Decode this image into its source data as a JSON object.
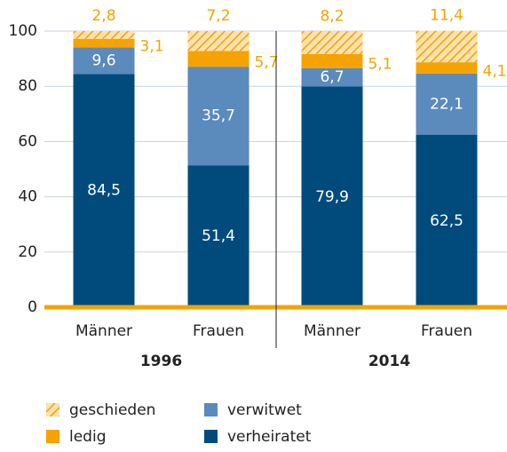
{
  "chart_data": {
    "type": "stacked_bar",
    "categories": [
      "Männer",
      "Frauen",
      "Männer",
      "Frauen"
    ],
    "group_labels": [
      "1996",
      "2014"
    ],
    "series": [
      {
        "name": "verheiratet",
        "color": "#004b7c",
        "values": [
          84.5,
          51.4,
          79.9,
          62.5
        ],
        "value_labels": [
          "84,5",
          "51,4",
          "79,9",
          "62,5"
        ],
        "label_position": "inside"
      },
      {
        "name": "verwitwet",
        "color": "#5b8abd",
        "values": [
          9.6,
          35.7,
          6.7,
          22.1
        ],
        "value_labels": [
          "9,6",
          "35,7",
          "6,7",
          "22,1"
        ],
        "label_position": "inside"
      },
      {
        "name": "ledig",
        "color": "#f5a300",
        "values": [
          3.1,
          5.7,
          5.1,
          4.1
        ],
        "value_labels": [
          "3,1",
          "5,7",
          "5,1",
          "4,1"
        ],
        "label_position": "right"
      },
      {
        "name": "geschieden",
        "color": "#f5a300",
        "hatch": true,
        "values": [
          2.8,
          7.2,
          8.2,
          11.4
        ],
        "value_labels": [
          "2,8",
          "7,2",
          "8,2",
          "11,4"
        ],
        "label_position": "top"
      }
    ],
    "ylim": [
      0,
      100
    ],
    "yticks": [
      0,
      20,
      40,
      60,
      80,
      100
    ],
    "grid": true
  }
}
